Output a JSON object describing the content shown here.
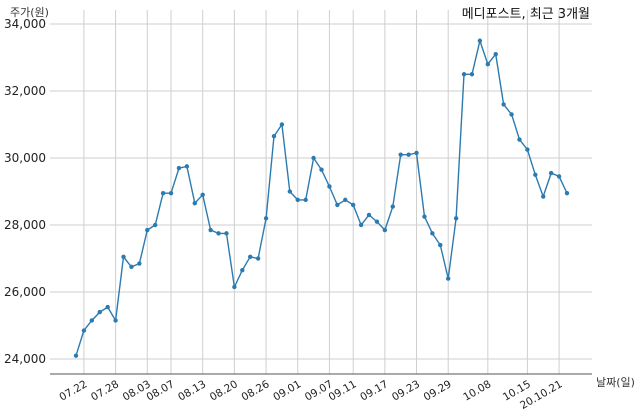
{
  "chart_data": {
    "type": "line",
    "title": "메디포스트, 최근 3개월",
    "xlabel": "날짜(일)",
    "ylabel": "주가(원)",
    "ylim": [
      23600,
      34200
    ],
    "yticks": [
      24000,
      26000,
      28000,
      30000,
      32000,
      34000
    ],
    "ytick_labels": [
      "24,000",
      "26,000",
      "28,000",
      "30,000",
      "32,000",
      "34,000"
    ],
    "xtick_labels": [
      "07.22",
      "07.28",
      "08.03",
      "08.07",
      "08.13",
      "08.20",
      "08.26",
      "09.01",
      "09.07",
      "09.11",
      "09.17",
      "09.23",
      "09.29",
      "10.08",
      "10.15",
      "20.10.21"
    ],
    "xtick_index": [
      1,
      5,
      9,
      12,
      16,
      20,
      24,
      28,
      32,
      35,
      39,
      43,
      47,
      52,
      57,
      61
    ],
    "grid": true,
    "line_color": "#2b7bb0",
    "series": [
      {
        "name": "",
        "values": [
          24100,
          24850,
          25150,
          25400,
          25550,
          25150,
          27050,
          26750,
          26850,
          27850,
          28000,
          28950,
          28950,
          29700,
          29750,
          28650,
          28900,
          27850,
          27750,
          27750,
          26150,
          26650,
          27050,
          27000,
          28200,
          30650,
          31000,
          29000,
          28750,
          28750,
          30000,
          29650,
          29150,
          28600,
          28750,
          28600,
          28000,
          28300,
          28100,
          27850,
          28550,
          30100,
          30100,
          30150,
          28250,
          27750,
          27400,
          26400,
          28200,
          32500,
          32500,
          33500,
          32800,
          33100,
          31600,
          31300,
          30550,
          30250,
          29500,
          28850,
          29550,
          29450,
          28950
        ]
      }
    ]
  }
}
